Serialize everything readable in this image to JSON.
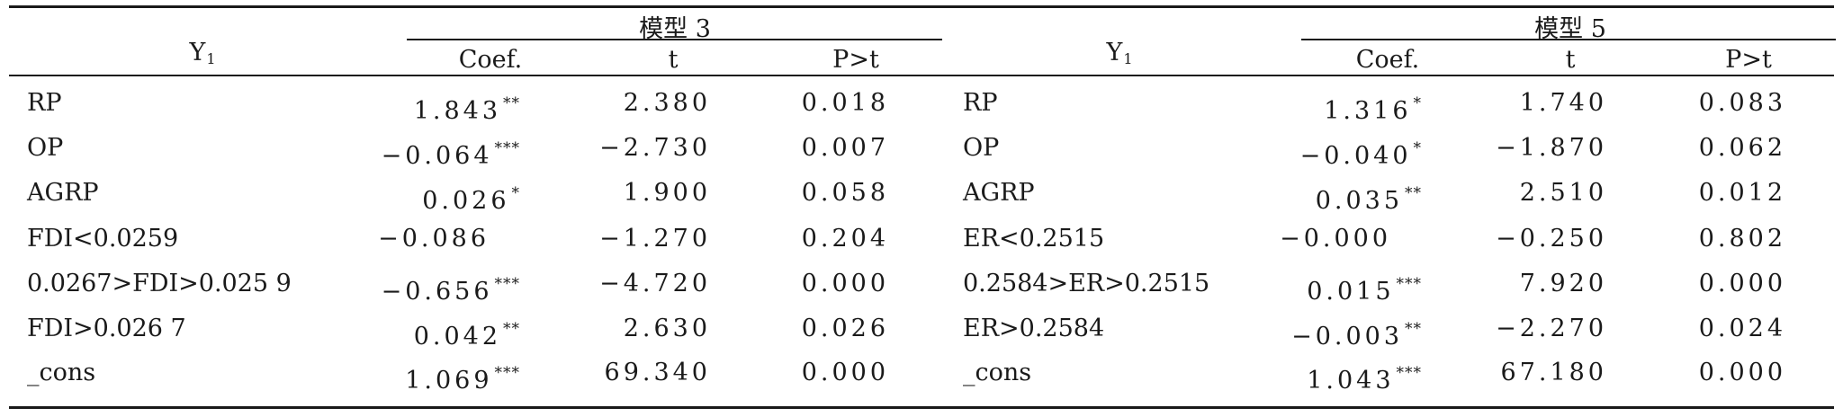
{
  "table": {
    "left": {
      "stub_header": {
        "base": "Y",
        "sub": "1"
      },
      "model_label": "模型 3",
      "columns": [
        "Coef.",
        "t",
        "P>t"
      ],
      "rows": [
        {
          "label": "RP",
          "coef": "1.843",
          "stars": "**",
          "t": "2.380",
          "p": "0.018"
        },
        {
          "label": "OP",
          "coef": "−0.064",
          "stars": "***",
          "t": "−2.730",
          "p": "0.007"
        },
        {
          "label": "AGRP",
          "coef": "0.026",
          "stars": "*",
          "t": "1.900",
          "p": "0.058"
        },
        {
          "label": "FDI<0.0259",
          "coef": "−0.086",
          "stars": "",
          "t": "−1.270",
          "p": "0.204"
        },
        {
          "label": "0.0267>FDI>0.025 9",
          "coef": "−0.656",
          "stars": "***",
          "t": "−4.720",
          "p": "0.000"
        },
        {
          "label": "FDI>0.026 7",
          "coef": "0.042",
          "stars": "**",
          "t": "2.630",
          "p": "0.026"
        },
        {
          "label": "_cons",
          "coef": "1.069",
          "stars": "***",
          "t": "69.340",
          "p": "0.000"
        }
      ]
    },
    "right": {
      "stub_header": {
        "base": "Y",
        "sub": "1"
      },
      "model_label": "模型 5",
      "columns": [
        "Coef.",
        "t",
        "P>t"
      ],
      "rows": [
        {
          "label": "RP",
          "coef": "1.316",
          "stars": "*",
          "t": "1.740",
          "p": "0.083"
        },
        {
          "label": "OP",
          "coef": "−0.040",
          "stars": "*",
          "t": "−1.870",
          "p": "0.062"
        },
        {
          "label": "AGRP",
          "coef": "0.035",
          "stars": "**",
          "t": "2.510",
          "p": "0.012"
        },
        {
          "label": "ER<0.2515",
          "coef": "−0.000",
          "stars": "",
          "t": "−0.250",
          "p": "0.802"
        },
        {
          "label": "0.2584>ER>0.2515",
          "coef": "0.015",
          "stars": "***",
          "t": "7.920",
          "p": "0.000"
        },
        {
          "label": "ER>0.2584",
          "coef": "−0.003",
          "stars": "**",
          "t": "−2.270",
          "p": "0.024"
        },
        {
          "label": "_cons",
          "coef": "1.043",
          "stars": "***",
          "t": "67.180",
          "p": "0.000"
        }
      ]
    }
  }
}
